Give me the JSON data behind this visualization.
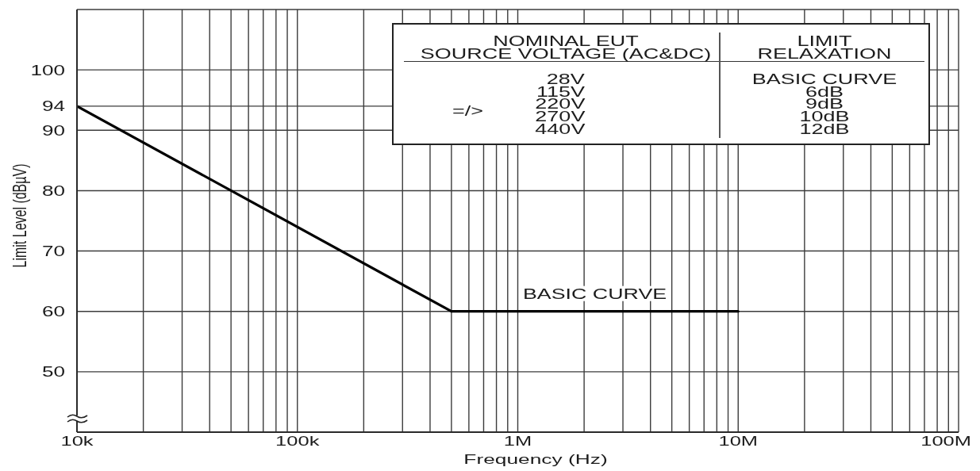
{
  "chart_data": {
    "type": "line",
    "xlabel": "Frequency (Hz)",
    "ylabel": "Limit Level (dBµV)",
    "x": [
      10000,
      500000,
      10000000
    ],
    "series": [
      {
        "name": "BASIC CURVE",
        "color": "#000000",
        "values": [
          94,
          60,
          60
        ]
      }
    ],
    "xlim": [
      10000,
      100000000
    ],
    "ylim": [
      40,
      110
    ],
    "xticks": [
      {
        "value": 10000,
        "label": "10k"
      },
      {
        "value": 20000,
        "label": null
      },
      {
        "value": 30000,
        "label": null
      },
      {
        "value": 40000,
        "label": null
      },
      {
        "value": 50000,
        "label": null
      },
      {
        "value": 60000,
        "label": null
      },
      {
        "value": 70000,
        "label": null
      },
      {
        "value": 80000,
        "label": null
      },
      {
        "value": 90000,
        "label": null
      },
      {
        "value": 100000,
        "label": "100k"
      },
      {
        "value": 200000,
        "label": null
      },
      {
        "value": 300000,
        "label": null
      },
      {
        "value": 400000,
        "label": null
      },
      {
        "value": 500000,
        "label": null
      },
      {
        "value": 600000,
        "label": null
      },
      {
        "value": 700000,
        "label": null
      },
      {
        "value": 800000,
        "label": null
      },
      {
        "value": 900000,
        "label": null
      },
      {
        "value": 1000000,
        "label": "1M"
      },
      {
        "value": 2000000,
        "label": null
      },
      {
        "value": 3000000,
        "label": null
      },
      {
        "value": 4000000,
        "label": null
      },
      {
        "value": 5000000,
        "label": null
      },
      {
        "value": 6000000,
        "label": null
      },
      {
        "value": 7000000,
        "label": null
      },
      {
        "value": 8000000,
        "label": null
      },
      {
        "value": 9000000,
        "label": null
      },
      {
        "value": 10000000,
        "label": "10M"
      },
      {
        "value": 20000000,
        "label": null
      },
      {
        "value": 30000000,
        "label": null
      },
      {
        "value": 40000000,
        "label": null
      },
      {
        "value": 50000000,
        "label": null
      },
      {
        "value": 60000000,
        "label": null
      },
      {
        "value": 70000000,
        "label": null
      },
      {
        "value": 80000000,
        "label": null
      },
      {
        "value": 90000000,
        "label": null
      },
      {
        "value": 100000000,
        "label": "100M"
      }
    ],
    "yticks": [
      50,
      60,
      70,
      80,
      90,
      94,
      100
    ],
    "log": "x",
    "grid": true,
    "annotations": [
      "NOMINAL EUT\nSOURCE VOLTAGE (AC&DC)",
      "LIMIT\nRELAXATION",
      "28V\n115V\n220V\n270V\n440V",
      "=/>",
      "BASIC CURVE\n6dB\n9dB\n10dB\n12dB"
    ]
  }
}
